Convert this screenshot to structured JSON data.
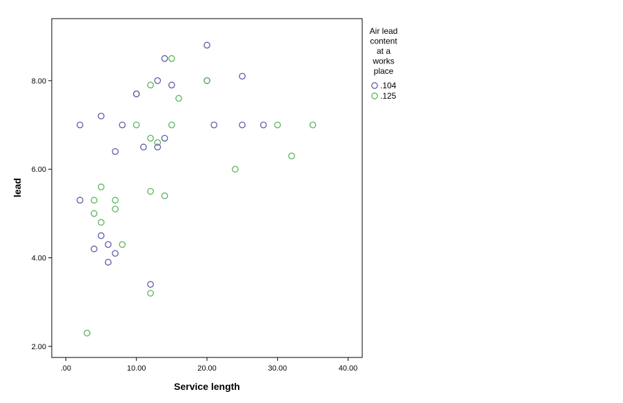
{
  "chart_data": {
    "type": "scatter",
    "xlabel": "Service length",
    "ylabel": "lead",
    "xlim": [
      -2,
      42
    ],
    "ylim": [
      1.75,
      9.4
    ],
    "x_ticks": [
      0,
      10,
      20,
      30,
      40
    ],
    "x_tick_labels": [
      ".00",
      "10.00",
      "20.00",
      "30.00",
      "40.00"
    ],
    "y_ticks": [
      2,
      4,
      6,
      8
    ],
    "y_tick_labels": [
      "2.00",
      "4.00",
      "6.00",
      "8.00"
    ],
    "grid": false,
    "marker": "hollow-circle",
    "legend": {
      "title_lines": [
        "Air lead",
        "content",
        "at  a",
        "works",
        "place"
      ],
      "placement": "right"
    },
    "series": [
      {
        "name": ".104",
        "color": "#5a5aa8",
        "points": [
          [
            2,
            7.0
          ],
          [
            5,
            7.2
          ],
          [
            8,
            7.0
          ],
          [
            10,
            7.7
          ],
          [
            10,
            7.7
          ],
          [
            13,
            8.0
          ],
          [
            14,
            8.5
          ],
          [
            15,
            7.9
          ],
          [
            20,
            8.8
          ],
          [
            20,
            8.0
          ],
          [
            25,
            8.1
          ],
          [
            21,
            7.0
          ],
          [
            25,
            7.0
          ],
          [
            28,
            7.0
          ],
          [
            7,
            6.4
          ],
          [
            11,
            6.5
          ],
          [
            13,
            6.5
          ],
          [
            14,
            6.7
          ],
          [
            2,
            5.3
          ],
          [
            5,
            4.5
          ],
          [
            4,
            4.2
          ],
          [
            6,
            4.3
          ],
          [
            6,
            3.9
          ],
          [
            7,
            4.1
          ],
          [
            12,
            3.4
          ]
        ]
      },
      {
        "name": ".125",
        "color": "#5ab45a",
        "points": [
          [
            12,
            7.9
          ],
          [
            15,
            8.5
          ],
          [
            20,
            8.0
          ],
          [
            16,
            7.6
          ],
          [
            10,
            7.0
          ],
          [
            15,
            7.0
          ],
          [
            30,
            7.0
          ],
          [
            35,
            7.0
          ],
          [
            12,
            6.7
          ],
          [
            13,
            6.6
          ],
          [
            32,
            6.3
          ],
          [
            24,
            6.0
          ],
          [
            5,
            5.6
          ],
          [
            12,
            5.5
          ],
          [
            14,
            5.4
          ],
          [
            4,
            5.3
          ],
          [
            7,
            5.3
          ],
          [
            7,
            5.1
          ],
          [
            4,
            5.0
          ],
          [
            5,
            4.8
          ],
          [
            8,
            4.3
          ],
          [
            12,
            3.2
          ],
          [
            3,
            2.3
          ]
        ]
      }
    ]
  }
}
